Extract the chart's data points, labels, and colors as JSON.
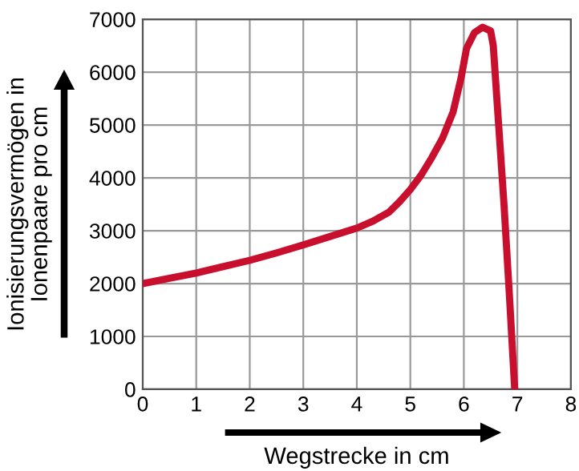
{
  "chart_data": {
    "type": "line",
    "xlabel": "Wegstrecke in cm",
    "ylabel": "Ionisierungsvermögen in\nIonenpaare pro cm",
    "series": [
      {
        "color": "#c8102e",
        "x": [
          0,
          0.5,
          1,
          1.5,
          2,
          2.5,
          3,
          3.5,
          4,
          4.3,
          4.6,
          4.8,
          5,
          5.2,
          5.4,
          5.6,
          5.8,
          5.95,
          6.05,
          6.2,
          6.35,
          6.5,
          6.55,
          6.65,
          6.75,
          6.85,
          6.95
        ],
        "values": [
          2000,
          2100,
          2200,
          2320,
          2440,
          2580,
          2730,
          2890,
          3050,
          3180,
          3350,
          3550,
          3780,
          4050,
          4380,
          4750,
          5250,
          5900,
          6450,
          6750,
          6850,
          6780,
          6500,
          5000,
          3500,
          1800,
          0
        ]
      }
    ],
    "xlim": [
      0,
      8
    ],
    "xticks": [
      0,
      1,
      2,
      3,
      4,
      5,
      6,
      7,
      8
    ],
    "ylim": [
      0,
      7000
    ],
    "yticks": [
      0,
      1000,
      2000,
      3000,
      4000,
      5000,
      6000,
      7000
    ],
    "grid": true,
    "marker": "none",
    "line_style": "solid"
  }
}
